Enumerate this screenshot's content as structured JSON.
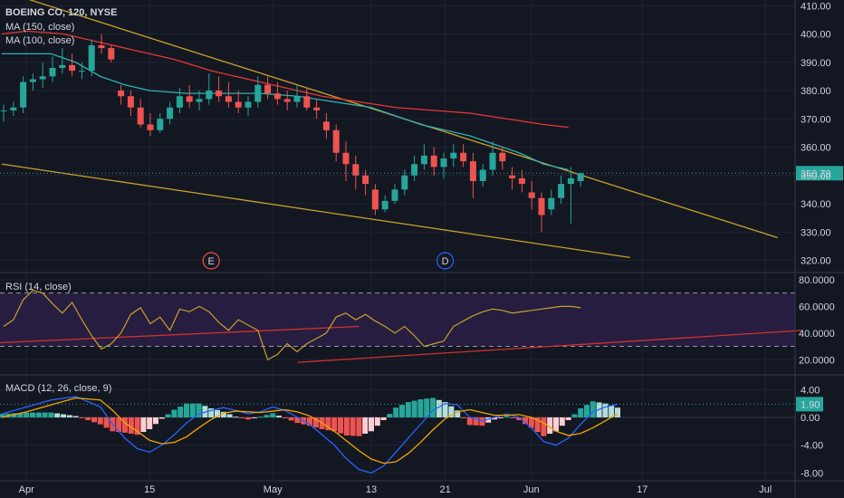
{
  "colors": {
    "background": "#131722",
    "grid": "#1f2330",
    "axis_text": "#d1d4dc",
    "candle_up": "#26a69a",
    "candle_down": "#ef5350",
    "ma150": "#e53935",
    "ma100": "#2eb3b3",
    "trendline": "#c9a227",
    "rsi_line": "#c9a227",
    "rsi_band": "#2a1f45",
    "rsi_trend": "#d32f2f",
    "macd_line": "#2962ff",
    "signal_line": "#f0a800",
    "hist_pos_strong": "#26a69a",
    "hist_pos_weak": "#b2dfdb",
    "hist_neg_strong": "#ef5350",
    "hist_neg_weak": "#ffcdd2"
  },
  "header": {
    "symbol_line": "BOEING CO, 120, NYSE",
    "ma150_label": "MA (150, close)",
    "ma100_label": "MA (100, close)"
  },
  "rsi": {
    "label": "RSI (14, close)"
  },
  "macd": {
    "label": "MACD (12, 26, close, 9)"
  },
  "price_label": "350.79",
  "macd_value_label": "1.90",
  "events": [
    {
      "letter": "E",
      "day": 17
    },
    {
      "letter": "D",
      "day": 36
    }
  ],
  "chart_data": [
    {
      "type": "candlestick",
      "yticks": [
        "410.00",
        "400.00",
        "390.00",
        "380.00",
        "370.00",
        "360.00",
        "350.00",
        "340.00",
        "330.00",
        "320.00"
      ],
      "ylim": [
        316,
        412
      ],
      "last_price": 350.79,
      "xticks": [
        {
          "day": 2,
          "label": "Apr"
        },
        {
          "day": 12,
          "label": "15"
        },
        {
          "day": 22,
          "label": "May"
        },
        {
          "day": 30,
          "label": "13"
        },
        {
          "day": 36,
          "label": "21"
        },
        {
          "day": 43,
          "label": "Jun"
        },
        {
          "day": 52,
          "label": "17"
        },
        {
          "day": 62,
          "label": "Jul"
        }
      ],
      "candles": [
        [
          373,
          375,
          369,
          373
        ],
        [
          373,
          376,
          371,
          374
        ],
        [
          374,
          385,
          372,
          383
        ],
        [
          383,
          386,
          380,
          384
        ],
        [
          384,
          390,
          381,
          385
        ],
        [
          385,
          392,
          383,
          388
        ],
        [
          388,
          395,
          386,
          389
        ],
        [
          389,
          393,
          385,
          387
        ],
        [
          387,
          390,
          384,
          387
        ],
        [
          387,
          398,
          385,
          396
        ],
        [
          396,
          400,
          393,
          395
        ],
        [
          395,
          396,
          390,
          391
        ],
        [
          380,
          382,
          375,
          378
        ],
        [
          378,
          380,
          371,
          374
        ],
        [
          374,
          377,
          367,
          368
        ],
        [
          368,
          372,
          364,
          366
        ],
        [
          366,
          372,
          365,
          370
        ],
        [
          370,
          376,
          368,
          374
        ],
        [
          374,
          381,
          372,
          378
        ],
        [
          378,
          382,
          374,
          376
        ],
        [
          376,
          380,
          373,
          377
        ],
        [
          377,
          386,
          375,
          380
        ],
        [
          380,
          385,
          376,
          378
        ],
        [
          378,
          383,
          374,
          376
        ],
        [
          376,
          380,
          372,
          374
        ],
        [
          374,
          378,
          371,
          376
        ],
        [
          376,
          385,
          374,
          382
        ],
        [
          382,
          385,
          377,
          379
        ],
        [
          379,
          383,
          375,
          377
        ],
        [
          377,
          380,
          373,
          376
        ],
        [
          376,
          382,
          374,
          378
        ],
        [
          378,
          381,
          373,
          374
        ],
        [
          374,
          377,
          370,
          373
        ],
        [
          369,
          372,
          363,
          366
        ],
        [
          366,
          368,
          355,
          358
        ],
        [
          358,
          362,
          348,
          354
        ],
        [
          354,
          357,
          345,
          350
        ],
        [
          350,
          352,
          343,
          347
        ],
        [
          345,
          347,
          336,
          338
        ],
        [
          338,
          343,
          337,
          341
        ],
        [
          341,
          347,
          340,
          345
        ],
        [
          345,
          352,
          343,
          350
        ],
        [
          350,
          357,
          348,
          354
        ],
        [
          354,
          361,
          352,
          357
        ],
        [
          357,
          360,
          350,
          353
        ],
        [
          353,
          358,
          349,
          356
        ],
        [
          356,
          361,
          353,
          358
        ],
        [
          358,
          361,
          353,
          355
        ],
        [
          355,
          358,
          342,
          348
        ],
        [
          348,
          354,
          346,
          352
        ],
        [
          352,
          362,
          350,
          358
        ],
        [
          358,
          360,
          352,
          355
        ],
        [
          350,
          353,
          345,
          349
        ],
        [
          349,
          352,
          344,
          347
        ],
        [
          344,
          348,
          338,
          342
        ],
        [
          342,
          344,
          330,
          336
        ],
        [
          338,
          345,
          336,
          342
        ],
        [
          342,
          350,
          340,
          347
        ],
        [
          347,
          353,
          333,
          349
        ],
        [
          348,
          351,
          346,
          350.79
        ]
      ],
      "ma150": [
        [
          0,
          400
        ],
        [
          2,
          401
        ],
        [
          5,
          400
        ],
        [
          8,
          397
        ],
        [
          11,
          394
        ],
        [
          14,
          391
        ],
        [
          17,
          387
        ],
        [
          20,
          384
        ],
        [
          23,
          381
        ],
        [
          26,
          378
        ],
        [
          29,
          376
        ],
        [
          32,
          374
        ],
        [
          35,
          373
        ],
        [
          38,
          372
        ],
        [
          41,
          370
        ],
        [
          44,
          368
        ],
        [
          46,
          367
        ]
      ],
      "ma100": [
        [
          0,
          393
        ],
        [
          2,
          393
        ],
        [
          4,
          393
        ],
        [
          6,
          390
        ],
        [
          8,
          385
        ],
        [
          10,
          382
        ],
        [
          12,
          380
        ],
        [
          15,
          379
        ],
        [
          18,
          379
        ],
        [
          21,
          379
        ],
        [
          24,
          378
        ],
        [
          27,
          376
        ],
        [
          30,
          374
        ],
        [
          32,
          371
        ],
        [
          34,
          368
        ],
        [
          36,
          366
        ],
        [
          38,
          364
        ],
        [
          40,
          361
        ],
        [
          42,
          358
        ],
        [
          44,
          354
        ],
        [
          46,
          352
        ]
      ],
      "trendlines": [
        {
          "x1": -2,
          "y1": 418,
          "x2": 63,
          "y2": 328
        },
        {
          "x1": 0,
          "y1": 354,
          "x2": 51,
          "y2": 321
        }
      ]
    },
    {
      "type": "line",
      "name": "RSI",
      "yticks": [
        "80.0000",
        "60.0000",
        "40.0000",
        "20.0000"
      ],
      "ylim": [
        10,
        82
      ],
      "band": [
        30,
        70
      ],
      "values": [
        [
          0,
          45
        ],
        [
          1,
          50
        ],
        [
          2,
          65
        ],
        [
          3,
          72
        ],
        [
          4,
          70
        ],
        [
          5,
          62
        ],
        [
          6,
          55
        ],
        [
          7,
          63
        ],
        [
          8,
          50
        ],
        [
          9,
          38
        ],
        [
          10,
          28
        ],
        [
          11,
          32
        ],
        [
          12,
          40
        ],
        [
          13,
          54
        ],
        [
          14,
          59
        ],
        [
          15,
          47
        ],
        [
          16,
          52
        ],
        [
          17,
          42
        ],
        [
          18,
          58
        ],
        [
          19,
          56
        ],
        [
          20,
          60
        ],
        [
          21,
          56
        ],
        [
          22,
          48
        ],
        [
          23,
          42
        ],
        [
          24,
          50
        ],
        [
          25,
          46
        ],
        [
          26,
          42
        ],
        [
          27,
          20
        ],
        [
          28,
          24
        ],
        [
          29,
          32
        ],
        [
          30,
          26
        ],
        [
          31,
          32
        ],
        [
          32,
          36
        ],
        [
          33,
          40
        ],
        [
          34,
          52
        ],
        [
          35,
          55
        ],
        [
          36,
          50
        ],
        [
          37,
          54
        ],
        [
          38,
          49
        ],
        [
          39,
          45
        ],
        [
          40,
          40
        ],
        [
          41,
          45
        ],
        [
          42,
          38
        ],
        [
          43,
          30
        ],
        [
          44,
          32
        ],
        [
          45,
          34
        ],
        [
          46,
          45
        ],
        [
          47,
          49
        ],
        [
          48,
          53
        ],
        [
          49,
          56
        ],
        [
          50,
          58
        ],
        [
          51,
          57
        ],
        [
          52,
          55
        ],
        [
          53,
          56
        ],
        [
          54,
          57
        ],
        [
          55,
          58
        ],
        [
          56,
          59
        ],
        [
          57,
          60
        ],
        [
          58,
          60
        ],
        [
          59,
          59
        ]
      ],
      "trendlines": [
        {
          "x1": -2,
          "y1": 32,
          "x2": 29,
          "y2": 45
        },
        {
          "x1": 24,
          "y1": 18,
          "x2": 65,
          "y2": 42
        }
      ]
    },
    {
      "type": "macd",
      "yticks": [
        "4.00",
        "0.00",
        "-4.00",
        "-8.00"
      ],
      "ylim": [
        -9,
        5.6
      ],
      "last_macd": 1.9,
      "macd": [
        [
          0,
          0.5
        ],
        [
          2,
          1.5
        ],
        [
          4,
          2.5
        ],
        [
          6,
          3.0
        ],
        [
          8,
          1.5
        ],
        [
          9,
          -1.0
        ],
        [
          10,
          -3.0
        ],
        [
          11,
          -4.5
        ],
        [
          12,
          -5.0
        ],
        [
          13,
          -4.0
        ],
        [
          14,
          -2.5
        ],
        [
          15,
          -0.8
        ],
        [
          16,
          0.5
        ],
        [
          17,
          1.0
        ],
        [
          18,
          1.4
        ],
        [
          19,
          1.0
        ],
        [
          20,
          0.5
        ],
        [
          21,
          0.8
        ],
        [
          22,
          1.5
        ],
        [
          23,
          1.0
        ],
        [
          24,
          0.0
        ],
        [
          25,
          -1.0
        ],
        [
          26,
          -2.5
        ],
        [
          27,
          -4.0
        ],
        [
          28,
          -6.0
        ],
        [
          29,
          -7.5
        ],
        [
          30,
          -8.0
        ],
        [
          31,
          -7.0
        ],
        [
          32,
          -5.0
        ],
        [
          33,
          -3.0
        ],
        [
          34,
          -1.0
        ],
        [
          35,
          1.0
        ],
        [
          36,
          2.0
        ],
        [
          37,
          1.8
        ],
        [
          38,
          0.0
        ],
        [
          39,
          -0.5
        ],
        [
          40,
          0.0
        ],
        [
          41,
          0.5
        ],
        [
          42,
          0.0
        ],
        [
          43,
          -1.5
        ],
        [
          44,
          -3.5
        ],
        [
          45,
          -4.0
        ],
        [
          46,
          -3.0
        ],
        [
          47,
          -1.0
        ],
        [
          48,
          0.8
        ],
        [
          49,
          1.5
        ],
        [
          50,
          1.9
        ]
      ],
      "signal": [
        [
          0,
          0.0
        ],
        [
          2,
          0.8
        ],
        [
          4,
          1.8
        ],
        [
          6,
          2.8
        ],
        [
          8,
          2.5
        ],
        [
          9,
          1.0
        ],
        [
          10,
          -0.8
        ],
        [
          11,
          -2.0
        ],
        [
          12,
          -3.3
        ],
        [
          13,
          -3.8
        ],
        [
          14,
          -3.6
        ],
        [
          15,
          -2.8
        ],
        [
          16,
          -1.5
        ],
        [
          17,
          -0.3
        ],
        [
          18,
          0.6
        ],
        [
          19,
          0.9
        ],
        [
          20,
          0.8
        ],
        [
          21,
          0.7
        ],
        [
          22,
          0.9
        ],
        [
          23,
          1.1
        ],
        [
          24,
          0.8
        ],
        [
          25,
          0.2
        ],
        [
          26,
          -0.8
        ],
        [
          27,
          -2.0
        ],
        [
          28,
          -3.4
        ],
        [
          29,
          -4.8
        ],
        [
          30,
          -6.0
        ],
        [
          31,
          -6.6
        ],
        [
          32,
          -6.4
        ],
        [
          33,
          -5.2
        ],
        [
          34,
          -3.6
        ],
        [
          35,
          -1.8
        ],
        [
          36,
          -0.2
        ],
        [
          37,
          0.8
        ],
        [
          38,
          1.1
        ],
        [
          39,
          0.7
        ],
        [
          40,
          0.3
        ],
        [
          41,
          0.3
        ],
        [
          42,
          0.4
        ],
        [
          43,
          0.0
        ],
        [
          44,
          -0.8
        ],
        [
          45,
          -2.0
        ],
        [
          46,
          -2.6
        ],
        [
          47,
          -2.3
        ],
        [
          48,
          -1.5
        ],
        [
          49,
          -0.5
        ],
        [
          50,
          0.5
        ]
      ]
    }
  ]
}
